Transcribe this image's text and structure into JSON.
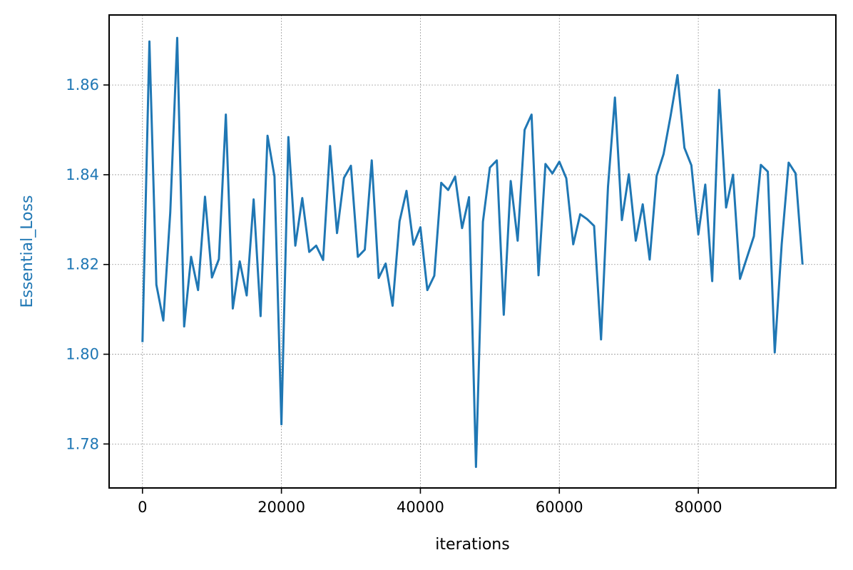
{
  "chart_data": {
    "type": "line",
    "title": "",
    "xlabel": "iterations",
    "ylabel": "Essential_Loss",
    "xlim": [
      -4800,
      99800
    ],
    "ylim": [
      1.7702,
      1.8756
    ],
    "xticks": [
      0,
      20000,
      40000,
      60000,
      80000
    ],
    "xtick_labels": [
      "0",
      "20000",
      "40000",
      "60000",
      "80000"
    ],
    "yticks": [
      1.78,
      1.8,
      1.82,
      1.84,
      1.86
    ],
    "ytick_labels": [
      "1.78",
      "1.80",
      "1.82",
      "1.84",
      "1.86"
    ],
    "grid": true,
    "colors": {
      "line": "#1f77b4",
      "ylabel": "#1f77b4",
      "ytick_labels": "#1f77b4",
      "grid": "#9a9a9a",
      "frame": "#000000"
    },
    "series": [
      {
        "x": [
          0,
          1000,
          2000,
          3000,
          4000,
          5000,
          6000,
          7000,
          8000,
          9000,
          10000,
          11000,
          12000,
          13000,
          14000,
          15000,
          16000,
          17000,
          18000,
          19000,
          20000,
          21000,
          22000,
          23000,
          24000,
          25000,
          26000,
          27000,
          28000,
          29000,
          30000,
          31000,
          32000,
          33000,
          34000,
          35000,
          36000,
          37000,
          38000,
          39000,
          40000,
          41000,
          42000,
          43000,
          44000,
          45000,
          46000,
          47000,
          48000,
          49000,
          50000,
          51000,
          52000,
          53000,
          54000,
          55000,
          56000,
          57000,
          58000,
          59000,
          60000,
          61000,
          62000,
          63000,
          64000,
          65000,
          66000,
          67000,
          68000,
          69000,
          70000,
          71000,
          72000,
          73000,
          74000,
          75000,
          76000,
          77000,
          78000,
          79000,
          80000,
          81000,
          82000,
          83000,
          84000,
          85000,
          86000,
          88000,
          89000,
          90000,
          91000,
          92000,
          93000,
          94000,
          95000
        ],
        "y": [
          1.8027,
          1.8697,
          1.8155,
          1.8075,
          1.8316,
          1.8705,
          1.8062,
          1.8217,
          1.8143,
          1.8351,
          1.8171,
          1.8212,
          1.8534,
          1.8102,
          1.8207,
          1.8131,
          1.8345,
          1.8085,
          1.8487,
          1.8396,
          1.7844,
          1.8484,
          1.8242,
          1.8348,
          1.8228,
          1.8242,
          1.821,
          1.8464,
          1.827,
          1.8393,
          1.842,
          1.8217,
          1.8233,
          1.8432,
          1.817,
          1.8202,
          1.8108,
          1.8296,
          1.8364,
          1.8244,
          1.8283,
          1.8143,
          1.8175,
          1.8382,
          1.8366,
          1.8396,
          1.8281,
          1.835,
          1.7749,
          1.8295,
          1.8416,
          1.8432,
          1.8088,
          1.8386,
          1.8253,
          1.85,
          1.8534,
          1.8176,
          1.8424,
          1.8403,
          1.8429,
          1.8392,
          1.8245,
          1.8312,
          1.8301,
          1.8286,
          1.8033,
          1.8373,
          1.8572,
          1.8299,
          1.8401,
          1.8253,
          1.8334,
          1.8211,
          1.8397,
          1.8446,
          1.853,
          1.8622,
          1.846,
          1.8421,
          1.8267,
          1.8378,
          1.8163,
          1.8589,
          1.8327,
          1.84,
          1.8168,
          1.8263,
          1.8422,
          1.8407,
          1.8004,
          1.8245,
          1.8427,
          1.8403,
          1.82
        ]
      }
    ]
  }
}
